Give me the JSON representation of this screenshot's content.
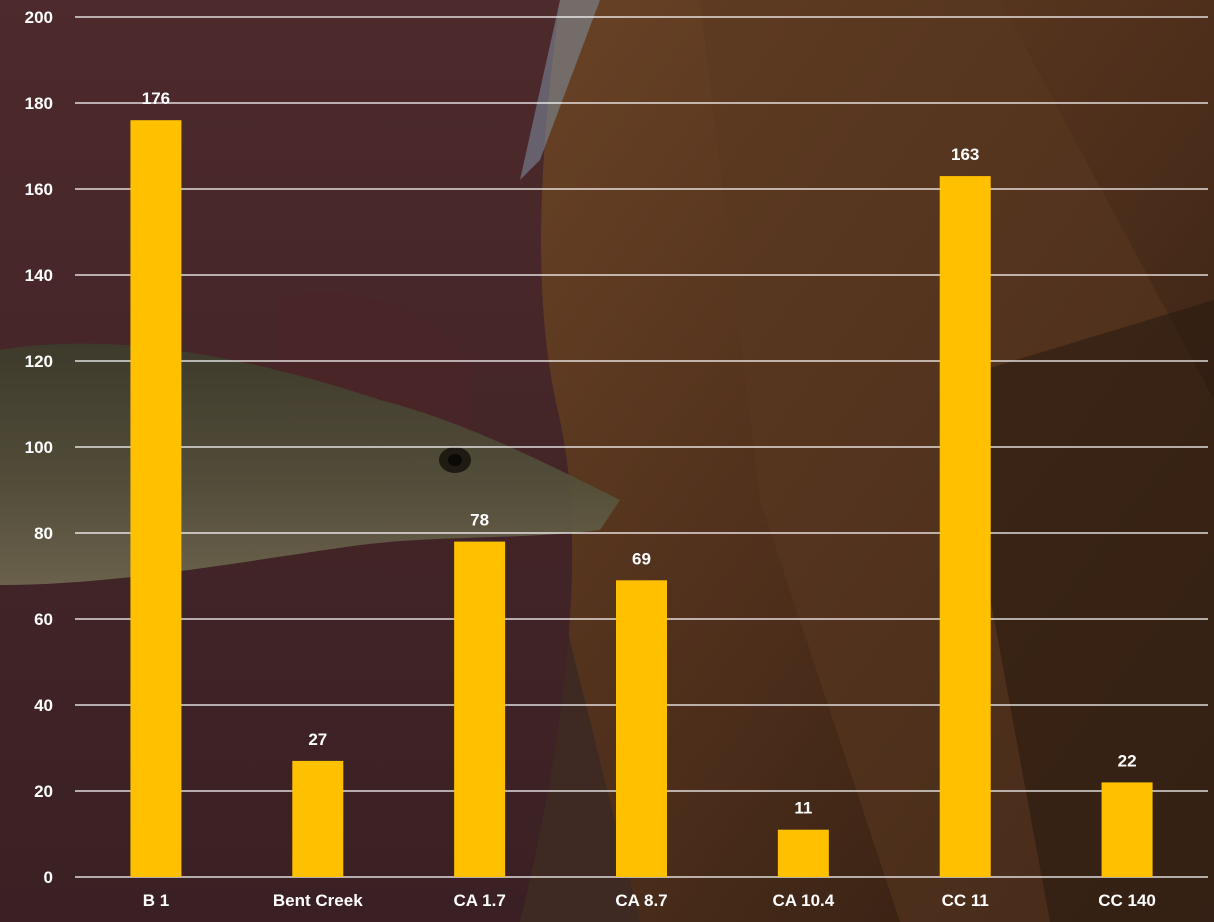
{
  "colors": {
    "bar": "#FFC000",
    "grid": "#FFFFFF",
    "text": "#FFFFFF"
  },
  "background": {
    "description_icon": "photo-background-fish-in-hands-boat"
  },
  "chart_data": {
    "type": "bar",
    "title": "",
    "xlabel": "",
    "ylabel": "",
    "categories": [
      "B 1",
      "Bent Creek",
      "CA 1.7",
      "CA 8.7",
      "CA 10.4",
      "CC 11",
      "CC 140"
    ],
    "values": [
      176,
      27,
      78,
      69,
      11,
      163,
      22
    ],
    "ylim": [
      0,
      200
    ],
    "yticks": [
      0,
      20,
      40,
      60,
      80,
      100,
      120,
      140,
      160,
      180,
      200
    ],
    "grid": true,
    "legend": "none",
    "data_labels": true
  }
}
